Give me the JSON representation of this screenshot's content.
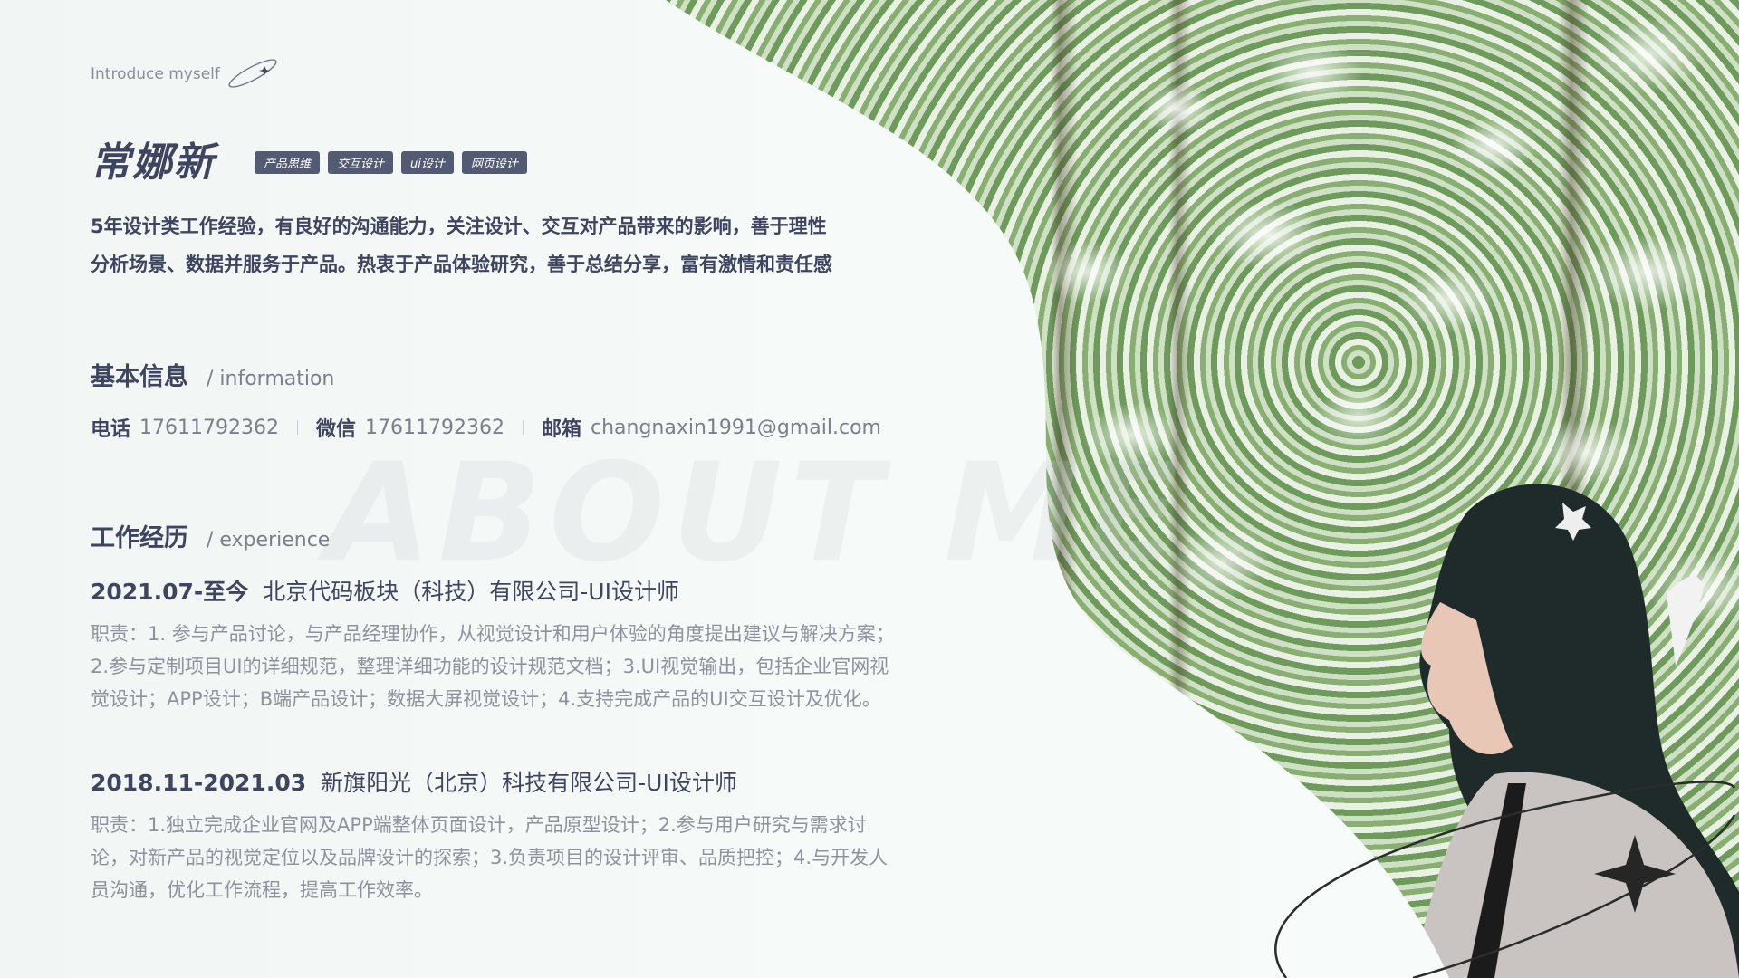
{
  "intro_label": "Introduce myself",
  "name": "常娜新",
  "tags": [
    "产品思维",
    "交互设计",
    "ui设计",
    "网页设计"
  ],
  "summary": [
    "5年设计类工作经验，有良好的沟通能力，关注设计、交互对产品带来的影响，善于理性",
    "分析场景、数据并服务于产品。热衷于产品体验研究，善于总结分享，富有激情和责任感"
  ],
  "basic_info": {
    "title": "基本信息",
    "subtitle": "/ information",
    "phone_label": "电话",
    "phone": "17611792362",
    "wechat_label": "微信",
    "wechat": "17611792362",
    "email_label": "邮箱",
    "email": "changnaxin1991@gmail.com"
  },
  "watermark": "ABOUT ME",
  "experience": {
    "title": "工作经历",
    "subtitle": "/ experience",
    "jobs": [
      {
        "date": "2021.07-至今",
        "company": "北京代码板块（科技）有限公司-UI设计师",
        "desc": [
          "职责：1. 参与产品讨论，与产品经理协作，从视觉设计和用户体验的角度提出建议与解决方案；",
          "2.参与定制项目UI的详细规范，整理详细功能的设计规范文档；3.UI视觉输出，包括企业官网视",
          "觉设计；APP设计；B端产品设计；数据大屏视觉设计；4.支持完成产品的UI交互设计及优化。"
        ]
      },
      {
        "date": "2018.11-2021.03",
        "company": "新旗阳光（北京）科技有限公司-UI设计师",
        "desc": [
          "职责：1.独立完成企业官网及APP端整体页面设计，产品原型设计；2.参与用户研究与需求讨",
          "论，对新产品的视觉定位以及品牌设计的探索；3.负责项目的设计评审、品质把控；4.与开发人",
          "员沟通，优化工作流程，提高工作效率。"
        ]
      }
    ]
  },
  "colors": {
    "primary_text": "#3f4560",
    "secondary_text": "#8e929c",
    "tag_bg": "#535a73"
  }
}
